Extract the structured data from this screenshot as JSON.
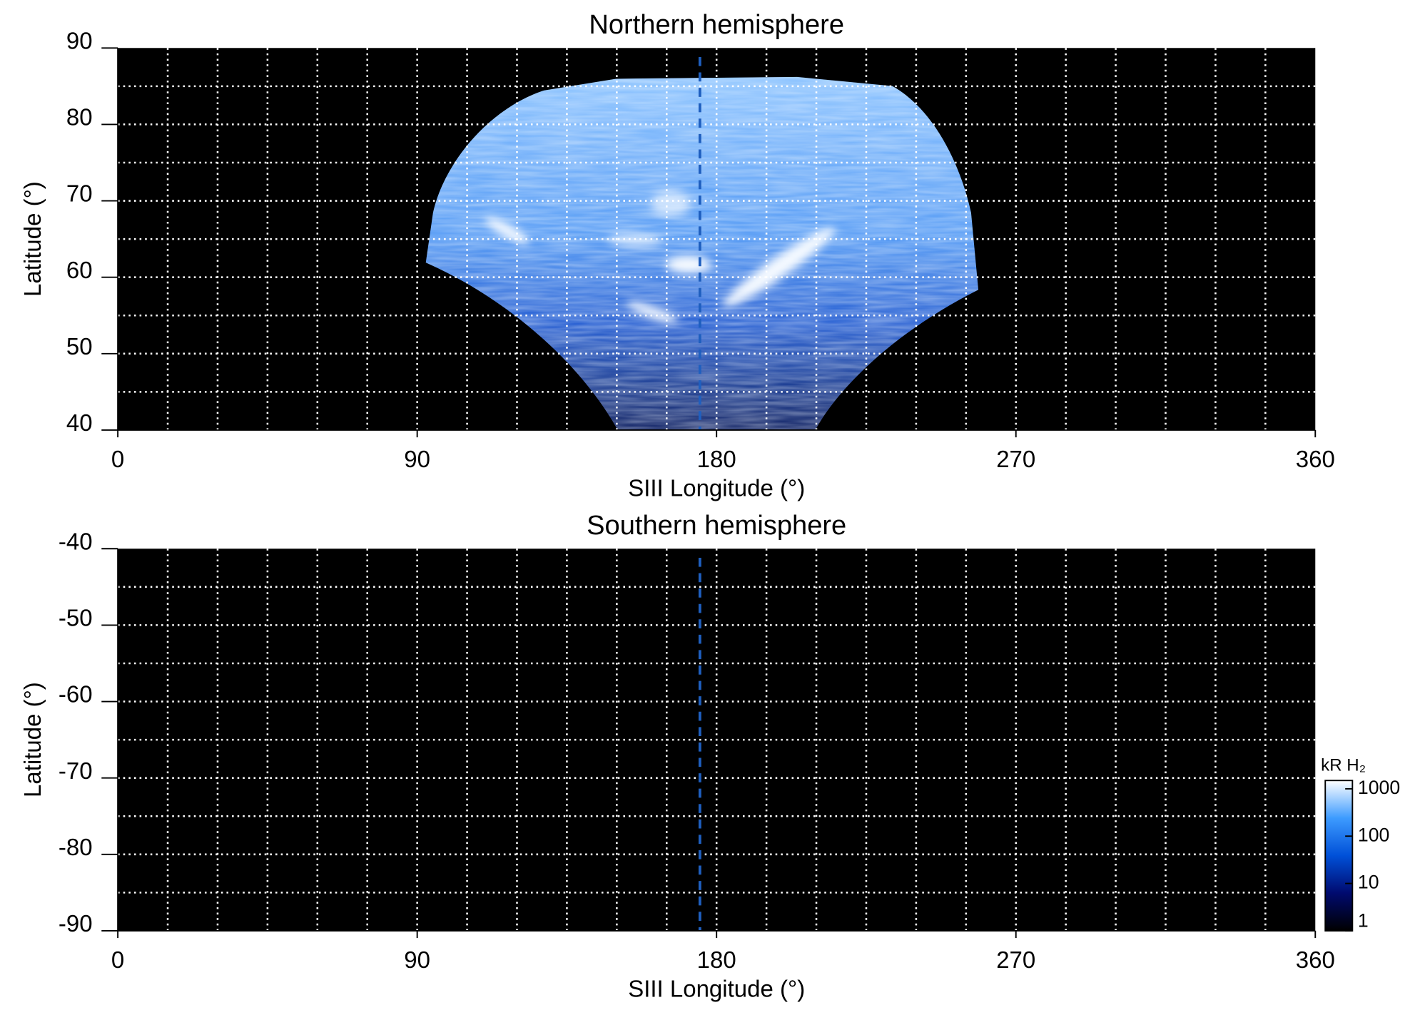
{
  "chart_data": [
    {
      "type": "image",
      "title": "Northern hemisphere",
      "xlabel": "SIII Longitude (°)",
      "ylabel": "Latitude (°)",
      "xlim": [
        0,
        360
      ],
      "ylim": [
        40,
        90
      ],
      "xticks": [
        0,
        90,
        180,
        270,
        360
      ],
      "yticks": [
        40,
        50,
        60,
        70,
        80,
        90
      ],
      "grid": true,
      "xgrid": [
        15,
        30,
        45,
        60,
        75,
        90,
        105,
        120,
        135,
        150,
        165,
        180,
        195,
        210,
        225,
        240,
        255,
        270,
        285,
        300,
        315,
        330,
        345
      ],
      "ygrid": [
        45,
        50,
        55,
        60,
        65,
        70,
        75,
        80,
        85
      ],
      "reference_line": {
        "x": 175,
        "color": "#1f5fbf"
      }
    },
    {
      "type": "image",
      "title": "Southern hemisphere",
      "xlabel": "SIII Longitude (°)",
      "ylabel": "Latitude (°)",
      "xlim": [
        0,
        360
      ],
      "ylim": [
        -90,
        -40
      ],
      "xticks": [
        0,
        90,
        180,
        270,
        360
      ],
      "yticks": [
        -90,
        -80,
        -70,
        -60,
        -50,
        -40
      ],
      "grid": true,
      "xgrid": [
        15,
        30,
        45,
        60,
        75,
        90,
        105,
        120,
        135,
        150,
        165,
        180,
        195,
        210,
        225,
        240,
        255,
        270,
        285,
        300,
        315,
        330,
        345
      ],
      "ygrid": [
        -85,
        -80,
        -75,
        -70,
        -65,
        -60,
        -55,
        -50,
        -45
      ],
      "reference_line": {
        "x": 175,
        "color": "#1f5fbf"
      },
      "colorbar": {
        "label": "kR H₂",
        "log": true,
        "lim": [
          1,
          1500
        ],
        "ticks": [
          1,
          10,
          100,
          1000
        ],
        "colors": [
          "#000000",
          "#000a6e",
          "#0050d8",
          "#3d9bff",
          "#ffffff"
        ]
      }
    }
  ]
}
